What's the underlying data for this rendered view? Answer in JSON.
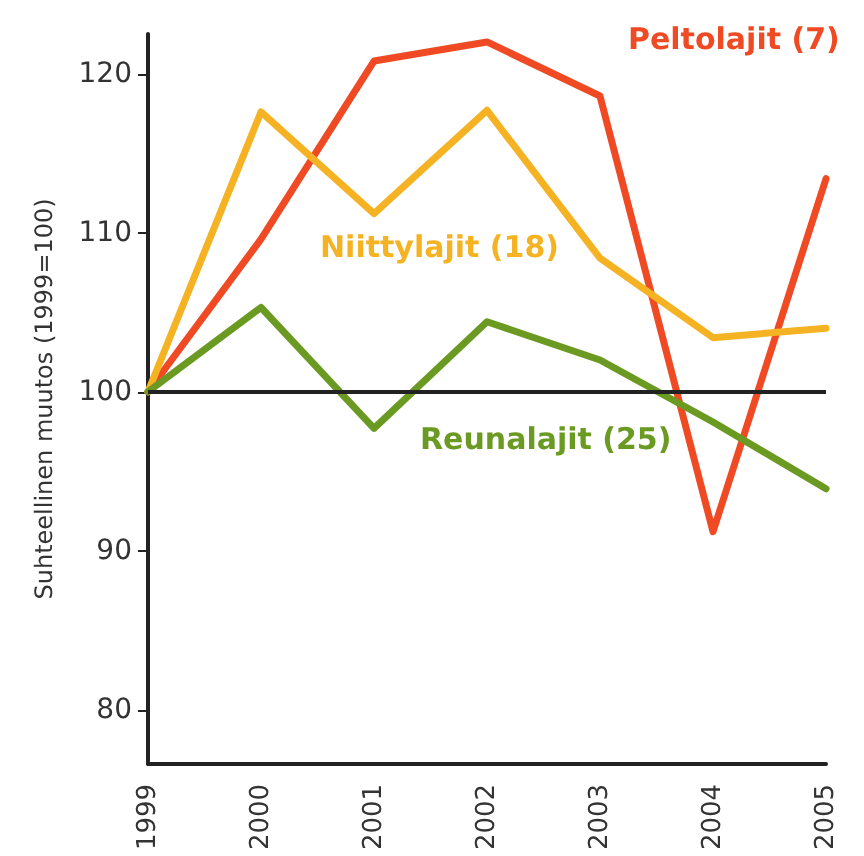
{
  "chart_data": {
    "type": "line",
    "ylabel": "Suhteellinen muutos (1999=100)",
    "categories": [
      "1999",
      "2000",
      "2001",
      "2002",
      "2003",
      "2004",
      "2005"
    ],
    "series": [
      {
        "name": "Peltolajit (7)",
        "color": "#ef4a23",
        "values": [
          100,
          109.6,
          120.8,
          122.0,
          118.6,
          91.2,
          113.4
        ]
      },
      {
        "name": "Niittylajit (18)",
        "color": "#f5b324",
        "values": [
          100,
          117.6,
          111.2,
          117.7,
          108.4,
          103.4,
          104.0
        ]
      },
      {
        "name": "Reunalajit (25)",
        "color": "#6b9a23",
        "values": [
          100,
          105.3,
          97.7,
          104.4,
          102.0,
          98.1,
          93.9
        ]
      }
    ],
    "ylim": [
      76.6,
      122.5
    ],
    "yticks": [
      80,
      90,
      100,
      110,
      120
    ],
    "ref_lines": [
      {
        "axis": "y",
        "value": 100,
        "color": "#222222"
      }
    ],
    "grid": false,
    "legend": false,
    "marker": "none",
    "line_style": "solid"
  }
}
